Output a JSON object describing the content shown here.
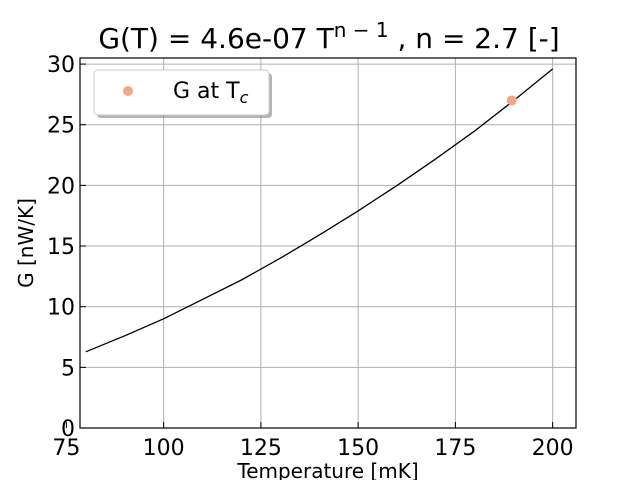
{
  "chart_data": {
    "type": "line",
    "title": {
      "prefix": "G(T) = 4.6e-07 T",
      "exponent": "n − 1",
      "suffix": " , n = 2.7 [-]"
    },
    "xlabel": "Temperature [mK]",
    "ylabel": "G [nW/K]",
    "xlim": [
      78.5,
      206
    ],
    "ylim": [
      0,
      30.5
    ],
    "xticks": [
      75,
      100,
      125,
      150,
      175,
      200
    ],
    "yticks": [
      0,
      5,
      10,
      15,
      20,
      25,
      30
    ],
    "grid": true,
    "legend_position": "top-left",
    "series": [
      {
        "kind": "line",
        "color": "#000000",
        "x": [
          80,
          90,
          100,
          110,
          120,
          130,
          140,
          150,
          160,
          170,
          180,
          190,
          200
        ],
        "y": [
          6.28,
          7.6,
          9.0,
          10.6,
          12.2,
          14.0,
          15.9,
          17.9,
          20.0,
          22.2,
          24.5,
          27.0,
          29.6
        ]
      },
      {
        "kind": "scatter",
        "name": "G at T",
        "name_sub": "c",
        "color": "#f4a582",
        "x": [
          189.5
        ],
        "y": [
          27.0
        ]
      }
    ]
  }
}
